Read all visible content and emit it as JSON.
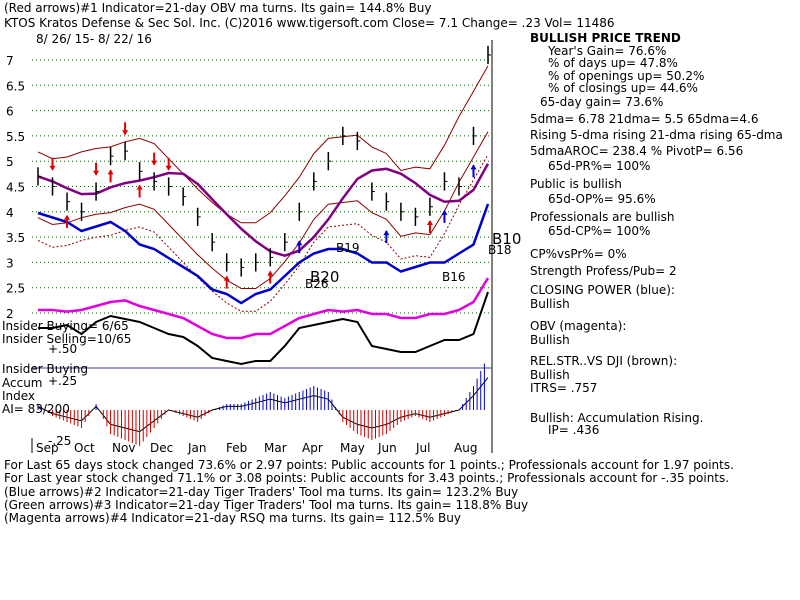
{
  "header": {
    "line1": "(Red arrows)#1 Indicator=21-day OBV ma turns. Its gain= 144.8% Buy",
    "ticker_line": "KTOS   Kratos Defense & Sec Sol. Inc.  (C)2016 www.tigersoft.com     Close=  7.1  Change= .23 Vol= 11486",
    "date_range": "8/ 26/ 15-  8/ 22/ 16"
  },
  "right_panel": {
    "trend_title": "BULLISH PRICE TREND",
    "yearly_gain": "Year's Gain= 76.6%",
    "days_up": "% of days up= 47.8%",
    "openings_up": "% of openings up= 50.2%",
    "closings_up": "% of closings up= 44.6%",
    "gain_65": "65-day gain= 73.6%",
    "dma": "5dma= 6.78 21dma= 5.5 65dma=4.6",
    "rising": "Rising 5-dma rising 21-dma rising 65-dma",
    "aroc": "5dmaAROC= 238.4 %  PivotP= 6.56",
    "pr": "65d-PR%= 100%",
    "public": "Public is bullish",
    "op": "65d-OP%= 95.6%",
    "professionals": "Professionals are bullish",
    "cp": "65d-CP%= 100%",
    "cpvspr": "CP%vsPr%=  0%",
    "strength": "Strength Profess/Pub= 2",
    "closing_power": "CLOSING POWER (blue):",
    "closing_power_val": "Bullish",
    "obv": "OBV (magenta):",
    "obv_val": "Bullish",
    "relstr": "REL.STR..VS DJI (brown):",
    "relstr_val": "Bullish",
    "itrs": "ITRS= .757",
    "accum": "Bullish: Accumulation Rising.",
    "ip": "IP=  .436"
  },
  "left_labels": {
    "insider_buying": "Insider Buying= 6/65",
    "insider_selling": "Insider Selling=10/65",
    "insider_buying2": "Insider Buying",
    "accum": "Accum",
    "index": "Index",
    "ai": "AI= 83/200",
    "p50": "+.50",
    "p25": "+.25",
    "m25": "-.25"
  },
  "footer": {
    "line1": "For Last 65 days stock changed  73.6% or  2.97 points:  Public accounts for  1 points.;  Professionals account for  1.97 points.",
    "line2": "For Last year stock changed  71.1% or  3.08 points:  Public accounts for  3.43 points.;  Professionals account for -.35 points.",
    "line3": "(Blue arrows)#2 Indicator=21-day Tiger Traders' Tool ma turns. Its gain= 123.2% Buy",
    "line4": "(Green arrows)#3 Indicator=21-day Tiger Traders' Tool ma turns. Its gain= 118.8% Buy",
    "line5": "(Magenta arrows)#4 Indicator=21-day RSQ ma turns. Its gain= 112.5% Buy"
  },
  "chart_data": {
    "type": "line",
    "title": "KTOS   Kratos Defense & Sec Sol. Inc.",
    "x_labels": [
      "Sep",
      "Oct",
      "Nov",
      "Dec",
      "Jan",
      "Feb",
      "Mar",
      "Apr",
      "May",
      "Jun",
      "Jul",
      "Aug"
    ],
    "y_ticks": [
      "7",
      "6.5",
      "6",
      "5.5",
      "5",
      "4.5",
      "4",
      "3.5",
      "3",
      "2.5",
      "2"
    ],
    "ylim": [
      2,
      7.3
    ],
    "signals": [
      "B26",
      "B20",
      "B19",
      "B16",
      "B10",
      "B18"
    ],
    "colors": {
      "price": "#000000",
      "closing_power": "#0000cc",
      "obv": "#e000e0",
      "relstr": "#000000",
      "ma65": "#800080",
      "band": "#8b0000",
      "red_arrow": "#e00000",
      "blue_arrow": "#0000cc",
      "accum_pos": "#0000cc",
      "accum_neg": "#cc0000",
      "grid": "#006400"
    },
    "series": [
      {
        "name": "Price (close)",
        "values": [
          4.7,
          4.5,
          4.2,
          4.0,
          4.4,
          5.1,
          5.2,
          4.8,
          4.6,
          4.5,
          4.3,
          3.9,
          3.4,
          3.0,
          2.9,
          3.0,
          3.1,
          3.4,
          4.0,
          4.6,
          5.0,
          5.5,
          5.4,
          4.4,
          4.2,
          4.0,
          3.9,
          4.1,
          4.6,
          4.5,
          5.5,
          7.1
        ]
      },
      {
        "name": "CLOSING POWER",
        "values": [
          0.5,
          0.45,
          0.4,
          0.3,
          0.35,
          0.4,
          0.3,
          0.15,
          0.1,
          0.0,
          -0.1,
          -0.2,
          -0.35,
          -0.4,
          -0.5,
          -0.4,
          -0.35,
          -0.2,
          -0.05,
          0.05,
          0.1,
          0.1,
          0.05,
          -0.05,
          -0.05,
          -0.15,
          -0.1,
          -0.05,
          -0.05,
          0.05,
          0.15,
          0.6
        ]
      },
      {
        "name": "OBV",
        "values": [
          0.0,
          0.0,
          -0.02,
          0.0,
          0.05,
          0.1,
          0.12,
          0.05,
          0.0,
          -0.05,
          -0.1,
          -0.2,
          -0.3,
          -0.35,
          -0.35,
          -0.3,
          -0.3,
          -0.2,
          -0.1,
          -0.05,
          0.0,
          -0.02,
          0.0,
          -0.05,
          -0.05,
          -0.1,
          -0.1,
          -0.05,
          -0.05,
          0.0,
          0.1,
          0.4
        ]
      },
      {
        "name": "REL.STR..VS DJI",
        "values": [
          0.2,
          0.2,
          0.25,
          0.1,
          0.3,
          0.4,
          0.35,
          0.3,
          0.2,
          0.1,
          0.05,
          -0.1,
          -0.3,
          -0.35,
          -0.4,
          -0.35,
          -0.35,
          -0.1,
          0.2,
          0.25,
          0.3,
          0.35,
          0.3,
          -0.1,
          -0.15,
          -0.2,
          -0.2,
          -0.1,
          0.0,
          0.0,
          0.1,
          0.8
        ]
      },
      {
        "name": "Accumulation Index",
        "values": [
          0.05,
          -0.05,
          -0.1,
          -0.15,
          0.05,
          -0.2,
          -0.25,
          -0.3,
          -0.15,
          0.0,
          -0.05,
          -0.1,
          0.0,
          0.05,
          0.05,
          0.1,
          0.15,
          0.1,
          0.15,
          0.2,
          0.15,
          -0.1,
          -0.2,
          -0.25,
          -0.2,
          -0.1,
          -0.05,
          -0.1,
          -0.05,
          0.0,
          0.2,
          0.45
        ]
      }
    ]
  }
}
